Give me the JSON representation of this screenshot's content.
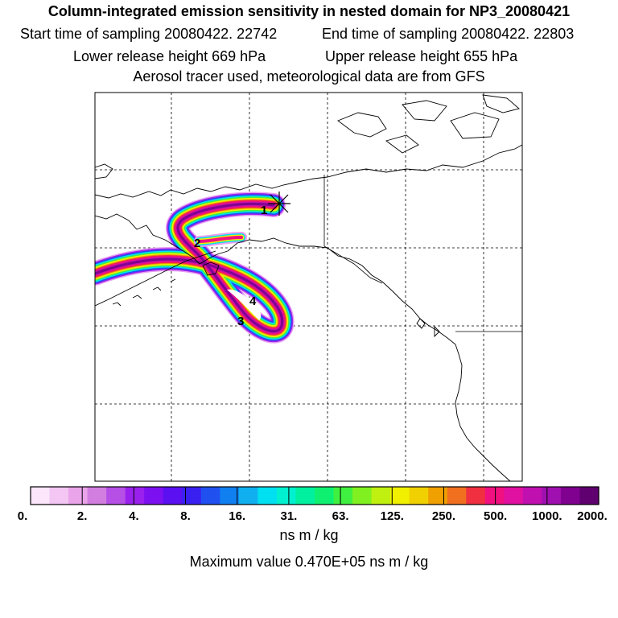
{
  "title": "Column-integrated emission sensitivity in nested domain for NP3_20080421",
  "sampling": {
    "start": "Start time of sampling 20080422. 22742",
    "end": "End time of sampling 20080422. 22803"
  },
  "release": {
    "lower": "Lower release height  669 hPa",
    "upper": "Upper release height  655 hPa"
  },
  "tracer_note": "Aerosol tracer used, meteorological data are from GFS",
  "map": {
    "trajectory_labels": [
      "1",
      "2",
      "3",
      "4"
    ],
    "receptor_symbol": "release-point-marker"
  },
  "colorbar": {
    "tick_labels": [
      "0.",
      "2.",
      "4.",
      "8.",
      "16.",
      "31.",
      "63.",
      "125.",
      "250.",
      "500.",
      "1000.",
      "2000."
    ],
    "units": "ns m / kg",
    "colors": [
      "#ffffff",
      "#fbe6fb",
      "#f3c6f3",
      "#eaa4ea",
      "#d27ee0",
      "#b54fe6",
      "#9a20ee",
      "#7d10f0",
      "#5a10f0",
      "#3a20f0",
      "#2050f0",
      "#1080f0",
      "#10b0f0",
      "#00e0f0",
      "#00f0d0",
      "#00f0a0",
      "#10f070",
      "#40f040",
      "#80f020",
      "#c0f010",
      "#f0f000",
      "#f0d000",
      "#f0a000",
      "#f07020",
      "#f03040",
      "#f01080",
      "#e010a0",
      "#c010b0",
      "#a010b0",
      "#800090",
      "#600070"
    ]
  },
  "max_value": "Maximum value  0.470E+05 ns m / kg"
}
